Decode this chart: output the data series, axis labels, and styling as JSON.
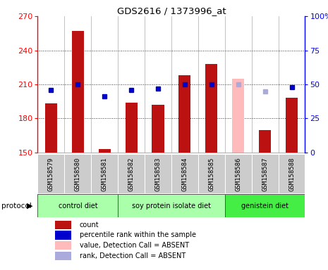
{
  "title": "GDS2616 / 1373996_at",
  "samples": [
    "GSM158579",
    "GSM158580",
    "GSM158581",
    "GSM158582",
    "GSM158583",
    "GSM158584",
    "GSM158585",
    "GSM158586",
    "GSM158587",
    "GSM158588"
  ],
  "count_values": [
    193,
    257,
    153,
    194,
    192,
    218,
    228,
    null,
    170,
    198
  ],
  "count_absent_values": [
    null,
    null,
    null,
    null,
    null,
    null,
    null,
    215,
    null,
    null
  ],
  "rank_values": [
    46,
    50,
    41,
    46,
    47,
    50,
    50,
    null,
    null,
    48
  ],
  "rank_absent_values": [
    null,
    null,
    null,
    null,
    null,
    null,
    null,
    50,
    45,
    null
  ],
  "ylim_left": [
    150,
    270
  ],
  "ylim_right": [
    0,
    100
  ],
  "yticks_left": [
    150,
    180,
    210,
    240,
    270
  ],
  "yticks_right": [
    0,
    25,
    50,
    75,
    100
  ],
  "ytick_labels_right": [
    "0",
    "25",
    "50",
    "75",
    "100%"
  ],
  "bar_color_present": "#bb1111",
  "bar_color_absent": "#ffbbbb",
  "dot_color_present": "#0000cc",
  "dot_color_absent": "#aaaadd",
  "bar_width": 0.45,
  "protocol_groups": [
    {
      "label": "control diet",
      "start": 0,
      "end": 3,
      "color": "#aaffaa"
    },
    {
      "label": "soy protein isolate diet",
      "start": 3,
      "end": 7,
      "color": "#aaffaa"
    },
    {
      "label": "genistein diet",
      "start": 7,
      "end": 10,
      "color": "#44ee44"
    }
  ],
  "legend_items": [
    {
      "label": "count",
      "color": "#bb1111"
    },
    {
      "label": "percentile rank within the sample",
      "color": "#0000cc"
    },
    {
      "label": "value, Detection Call = ABSENT",
      "color": "#ffbbbb"
    },
    {
      "label": "rank, Detection Call = ABSENT",
      "color": "#aaaadd"
    }
  ],
  "sample_box_color": "#cccccc",
  "grid_dotted_color": "#333333",
  "col_sep_color": "#aaaaaa"
}
